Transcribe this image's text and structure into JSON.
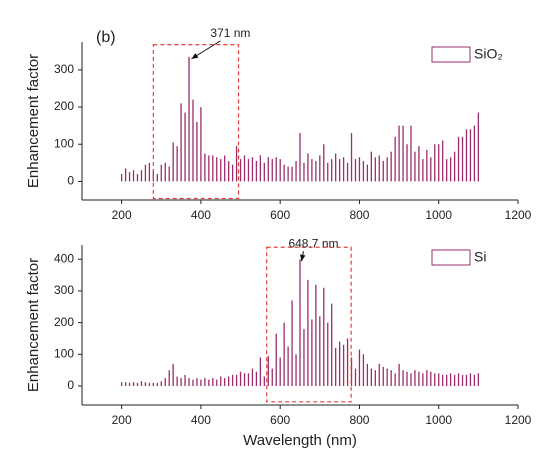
{
  "chart_data": [
    {
      "type": "bar",
      "panel_label": "(b)",
      "ylabel": "Enhancement factor",
      "x": [
        200,
        210,
        220,
        230,
        240,
        250,
        260,
        270,
        280,
        290,
        300,
        310,
        320,
        330,
        340,
        350,
        360,
        370,
        380,
        390,
        400,
        410,
        420,
        430,
        440,
        450,
        460,
        470,
        480,
        490,
        500,
        510,
        520,
        530,
        540,
        550,
        560,
        570,
        580,
        590,
        600,
        610,
        620,
        630,
        640,
        650,
        660,
        670,
        680,
        690,
        700,
        710,
        720,
        730,
        740,
        750,
        760,
        770,
        780,
        790,
        800,
        810,
        820,
        830,
        840,
        850,
        860,
        870,
        880,
        890,
        900,
        910,
        920,
        930,
        940,
        950,
        960,
        970,
        980,
        990,
        1000,
        1010,
        1020,
        1030,
        1040,
        1050,
        1060,
        1070,
        1080,
        1090,
        1100
      ],
      "series": [
        {
          "name": "SiO₂",
          "color": "#9b2d6b",
          "values": [
            20,
            35,
            25,
            30,
            20,
            30,
            45,
            50,
            30,
            20,
            45,
            50,
            40,
            105,
            95,
            210,
            185,
            335,
            220,
            160,
            200,
            75,
            70,
            70,
            65,
            60,
            70,
            55,
            45,
            95,
            60,
            70,
            60,
            65,
            55,
            70,
            50,
            65,
            60,
            65,
            60,
            45,
            40,
            40,
            55,
            130,
            50,
            75,
            60,
            55,
            70,
            100,
            50,
            60,
            75,
            60,
            65,
            50,
            130,
            60,
            65,
            55,
            45,
            80,
            65,
            70,
            55,
            65,
            80,
            120,
            150,
            150,
            100,
            150,
            80,
            95,
            60,
            85,
            65,
            100,
            100,
            110,
            60,
            65,
            80,
            120,
            120,
            140,
            140,
            150,
            185
          ]
        }
      ],
      "xlim": [
        100,
        1200
      ],
      "xticks": [
        200,
        400,
        600,
        800,
        1000,
        1200
      ],
      "ylim": [
        -50,
        375
      ],
      "yticks": [
        0,
        100,
        200,
        300
      ],
      "legend": "upper right",
      "annotation": {
        "text": "371 nm",
        "x": 371,
        "y": 335
      },
      "highlight": {
        "x": [
          280,
          495
        ],
        "y": [
          -46,
          368
        ]
      }
    },
    {
      "type": "bar",
      "ylabel": "Enhancement factor",
      "xlabel": "Wavelength (nm)",
      "x": [
        200,
        210,
        220,
        230,
        240,
        250,
        260,
        270,
        280,
        290,
        300,
        310,
        320,
        330,
        340,
        350,
        360,
        370,
        380,
        390,
        400,
        410,
        420,
        430,
        440,
        450,
        460,
        470,
        480,
        490,
        500,
        510,
        520,
        530,
        540,
        550,
        560,
        570,
        580,
        590,
        600,
        610,
        620,
        630,
        640,
        650,
        660,
        670,
        680,
        690,
        700,
        710,
        720,
        730,
        740,
        750,
        760,
        770,
        780,
        790,
        800,
        810,
        820,
        830,
        840,
        850,
        860,
        870,
        880,
        890,
        900,
        910,
        920,
        930,
        940,
        950,
        960,
        970,
        980,
        990,
        1000,
        1010,
        1020,
        1030,
        1040,
        1050,
        1060,
        1070,
        1080,
        1090,
        1100
      ],
      "series": [
        {
          "name": "Si",
          "color": "#9b2d6b",
          "values": [
            12,
            12,
            10,
            12,
            10,
            15,
            12,
            10,
            10,
            10,
            15,
            25,
            50,
            70,
            30,
            25,
            35,
            25,
            20,
            25,
            20,
            25,
            20,
            25,
            20,
            30,
            25,
            30,
            35,
            35,
            45,
            40,
            40,
            55,
            45,
            90,
            30,
            95,
            55,
            165,
            90,
            200,
            125,
            270,
            100,
            400,
            180,
            335,
            210,
            320,
            220,
            310,
            200,
            260,
            120,
            140,
            130,
            150,
            90,
            55,
            115,
            100,
            70,
            55,
            50,
            70,
            60,
            55,
            50,
            40,
            70,
            50,
            45,
            40,
            50,
            45,
            40,
            50,
            45,
            40,
            40,
            35,
            35,
            40,
            35,
            40,
            35,
            35,
            40,
            35,
            40
          ]
        }
      ],
      "xlim": [
        100,
        1200
      ],
      "xticks": [
        200,
        400,
        600,
        800,
        1000,
        1200
      ],
      "ylim": [
        -60,
        445
      ],
      "yticks": [
        0,
        100,
        200,
        300,
        400
      ],
      "legend": "upper right",
      "annotation": {
        "text": "648.7 nm",
        "x": 648.7,
        "y": 400
      },
      "highlight": {
        "x": [
          566,
          779
        ],
        "y": [
          -50,
          438
        ]
      }
    }
  ]
}
